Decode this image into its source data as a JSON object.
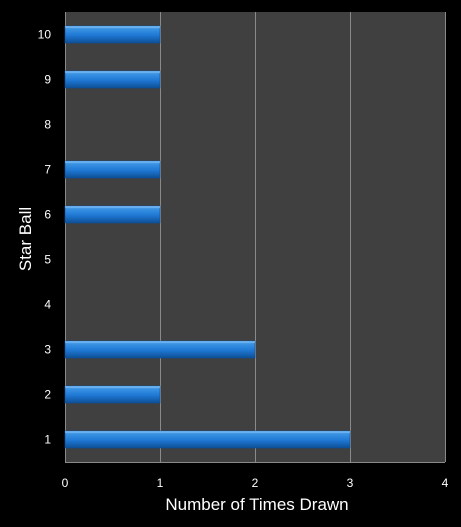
{
  "chart_data": {
    "type": "bar",
    "orientation": "horizontal",
    "categories": [
      "1",
      "2",
      "3",
      "4",
      "5",
      "6",
      "7",
      "8",
      "9",
      "10"
    ],
    "values": [
      3,
      1,
      2,
      0,
      0,
      1,
      1,
      0,
      1,
      1
    ],
    "xlabel": "Number of Times Drawn",
    "ylabel": "Star Ball",
    "xlim": [
      0,
      4
    ],
    "xticks": [
      "0",
      "1",
      "2",
      "3",
      "4"
    ],
    "grid": "vertical",
    "colors": {
      "background": "#000000",
      "plot_background": "#404040",
      "gridline": "#8a8a8a",
      "bar": "#1f78d4",
      "bar_highlight": "#6bb2f0",
      "bar_shadow": "#0d4f96",
      "text": "#ffffff"
    }
  }
}
